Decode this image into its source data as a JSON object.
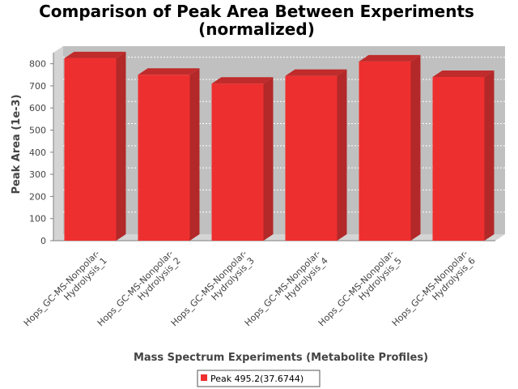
{
  "chart_data": {
    "type": "bar",
    "title": [
      "Comparison of Peak Area Between Experiments",
      "(normalized)"
    ],
    "xlabel": "Mass Spectrum Experiments (Metabolite Profiles)",
    "ylabel": "Peak Area (1e-3)",
    "ylim": [
      0,
      850
    ],
    "yticks": [
      0,
      100,
      200,
      300,
      400,
      500,
      600,
      700,
      800
    ],
    "grid": true,
    "legend_position": "bottom",
    "categories": [
      [
        "Hops_GC-MS-Nonpolar-",
        "Hydrolysis_1"
      ],
      [
        "Hops_GC-MS-Nonpolar-",
        "Hydrolysis_2"
      ],
      [
        "Hops_GC-MS-Nonpolar-",
        "Hydrolysis_3"
      ],
      [
        "Hops_GC-MS-Nonpolar-",
        "Hydrolysis_4"
      ],
      [
        "Hops_GC-MS-Nonpolar-",
        "Hydrolysis_5"
      ],
      [
        "Hops_GC-MS-Nonpolar-",
        "Hydrolysis_6"
      ]
    ],
    "series": [
      {
        "name": "Peak 495.2(37.6744)",
        "color": "#ee2f2f",
        "values": [
          825,
          750,
          710,
          745,
          810,
          740
        ]
      }
    ]
  }
}
